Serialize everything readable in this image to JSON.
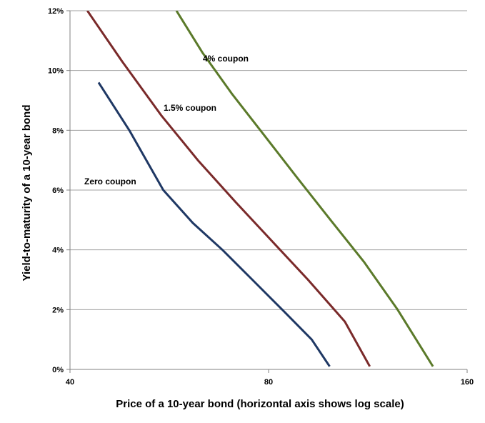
{
  "chart_data": {
    "type": "line",
    "title": "",
    "xlabel": "Price of a 10-year bond (horizontal axis shows log scale)",
    "ylabel": "Yield-to-maturity of a 10-year bond",
    "x_scale": "log",
    "xlim": [
      40,
      160
    ],
    "ylim": [
      0,
      12
    ],
    "x_ticks": [
      40,
      80,
      160
    ],
    "x_tick_labels": [
      "40",
      "80",
      "160"
    ],
    "y_ticks": [
      0,
      2,
      4,
      6,
      8,
      10,
      12
    ],
    "y_tick_labels": [
      "0%",
      "2%",
      "4%",
      "6%",
      "8%",
      "10%",
      "12%"
    ],
    "grid": "horizontal",
    "legend": "none",
    "colors": {
      "zero": "#1f3864",
      "onefive": "#7a2a2a",
      "four": "#5b7a2a",
      "grid": "#a0a0a0",
      "axis": "#808080"
    },
    "series": [
      {
        "name": "Zero coupon",
        "color": "#1f3864",
        "x": [
          44.2,
          49.2,
          55.4,
          61.4,
          68.1,
          75.6,
          83.9,
          93.0,
          99.0
        ],
        "y": [
          9.6,
          8.0,
          6.0,
          4.9,
          4.0,
          3.0,
          2.0,
          1.0,
          0.1
        ]
      },
      {
        "name": "1.5% coupon",
        "color": "#7a2a2a",
        "x": [
          42.5,
          48.0,
          55.0,
          62.5,
          71.3,
          80.9,
          91.8,
          104.4,
          113.9
        ],
        "y": [
          12.0,
          10.3,
          8.5,
          7.0,
          5.6,
          4.3,
          3.0,
          1.6,
          0.1
        ]
      },
      {
        "name": "4% coupon",
        "color": "#5b7a2a",
        "x": [
          58.0,
          63.5,
          70.5,
          79.0,
          88.5,
          99.3,
          111.6,
          125.5,
          142.0
        ],
        "y": [
          12.0,
          10.6,
          9.2,
          7.8,
          6.4,
          5.0,
          3.6,
          2.0,
          0.1
        ]
      }
    ]
  }
}
